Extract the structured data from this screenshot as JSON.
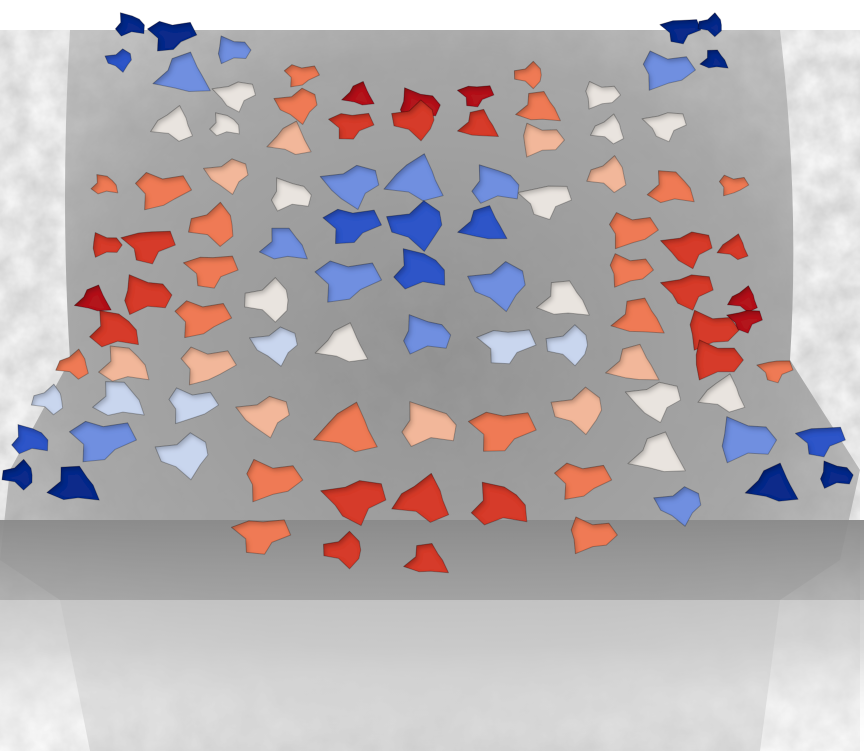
{
  "scene": {
    "description_visible_text": "",
    "colormap": [
      "#0d2a8a",
      "#2f55c8",
      "#6f8fe0",
      "#c9d6ee",
      "#e9e4df",
      "#f2b79a",
      "#ef7a55",
      "#d63a2c",
      "#b3141f"
    ]
  }
}
